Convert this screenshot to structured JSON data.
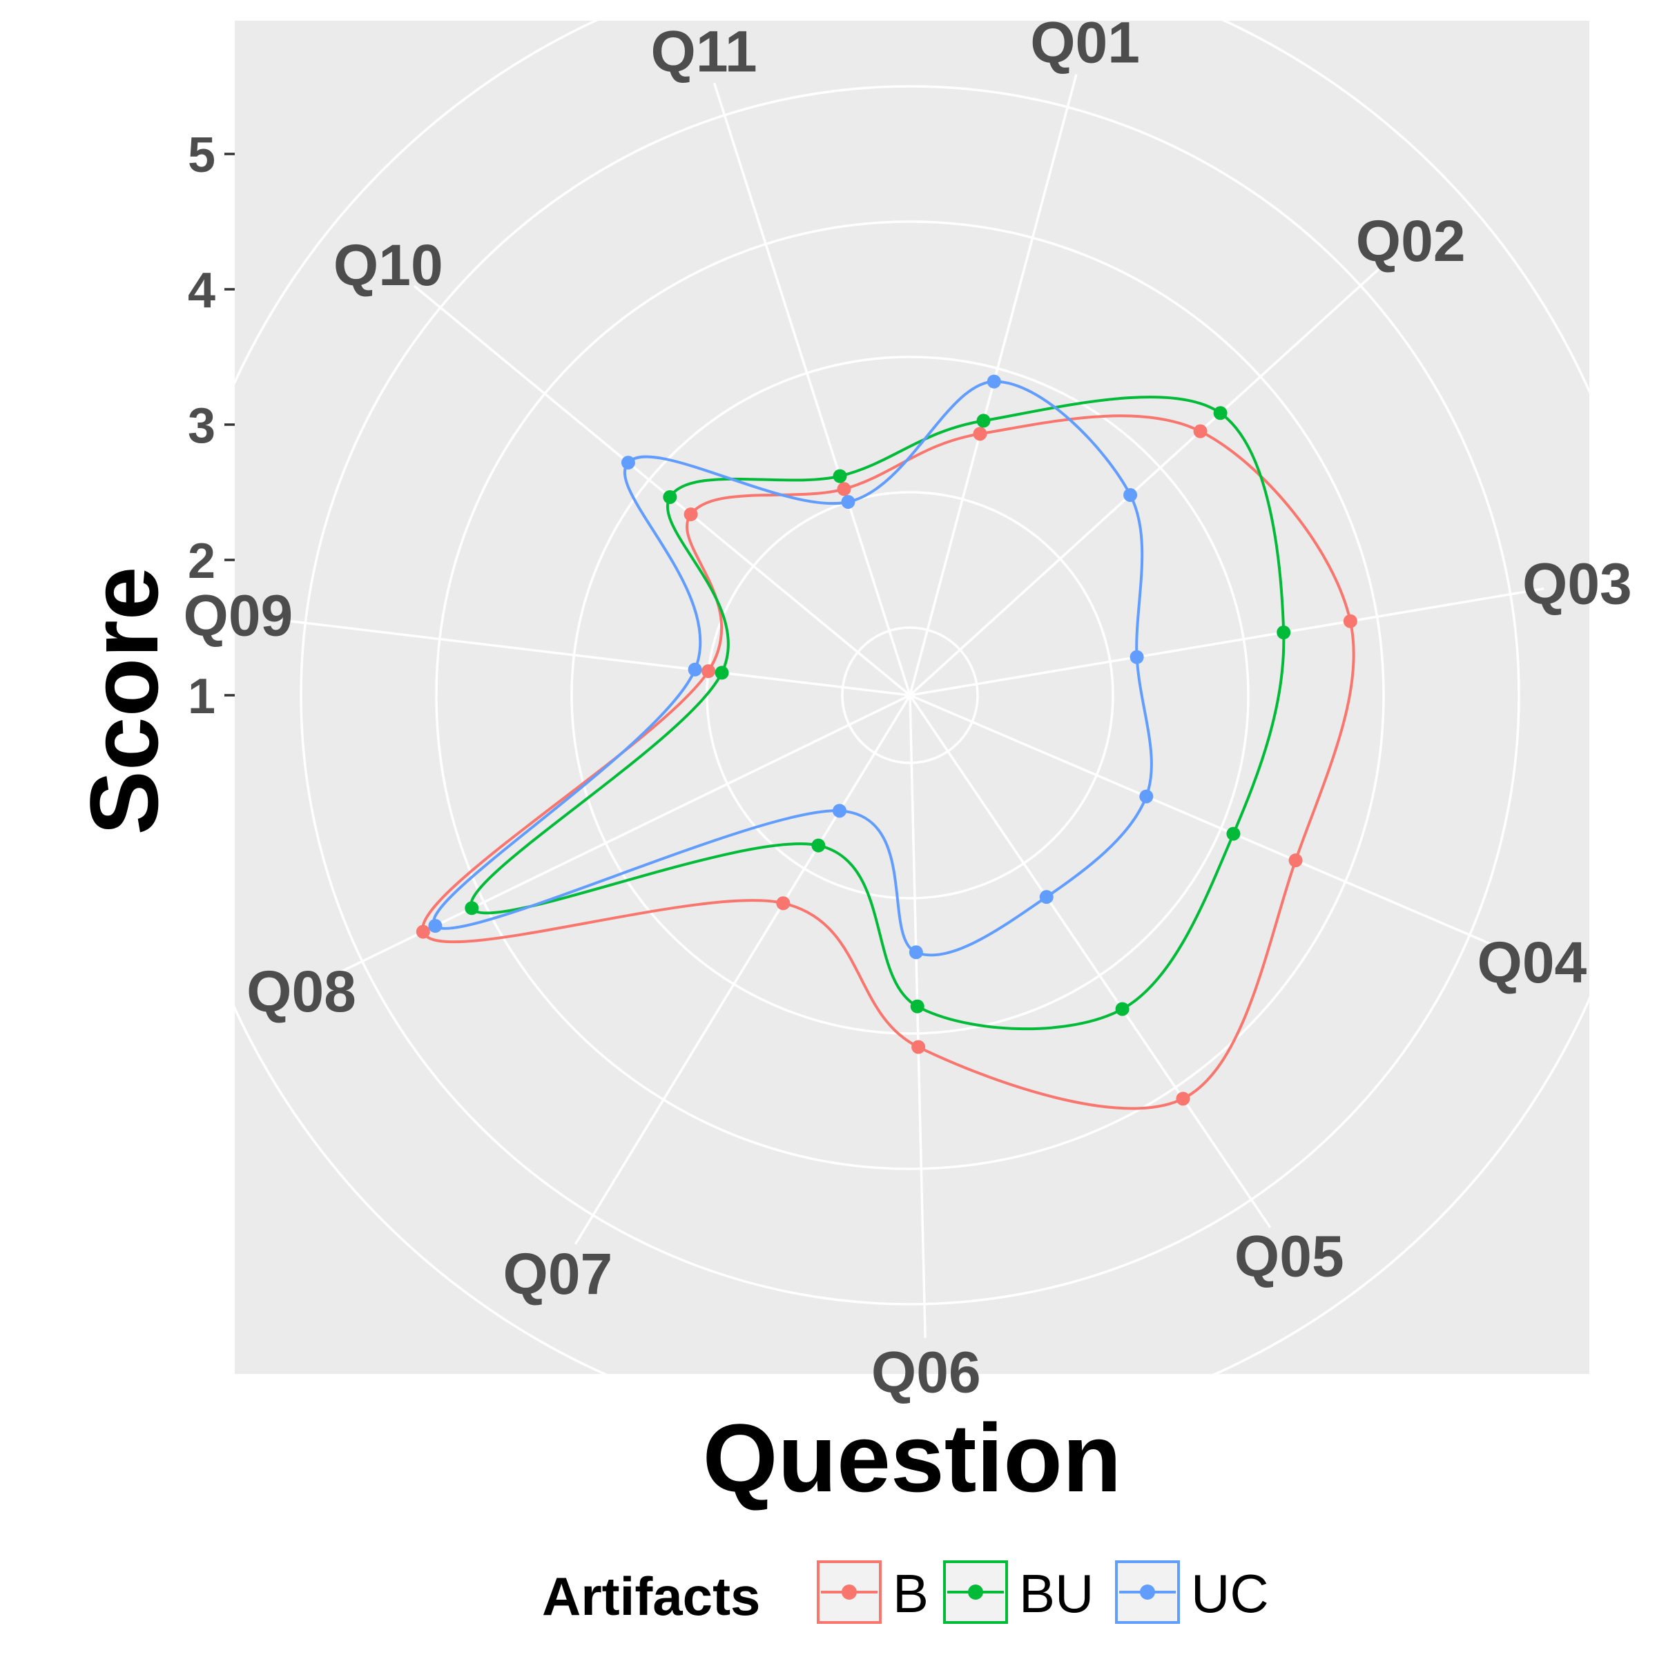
{
  "chart_data": {
    "type": "radar",
    "xlabel": "Question",
    "ylabel": "Score",
    "categories": [
      "Q01",
      "Q02",
      "Q03",
      "Q04",
      "Q05",
      "Q06",
      "Q07",
      "Q08",
      "Q09",
      "Q10",
      "Q11"
    ],
    "y_ticks": [
      1,
      2,
      3,
      4,
      5
    ],
    "ylim": [
      0,
      5.5
    ],
    "grid": true,
    "legend": {
      "title": "Artifacts",
      "position": "bottom"
    },
    "series": [
      {
        "name": "B",
        "color": "#F8766D",
        "values": [
          2.0,
          2.9,
          3.3,
          3.1,
          3.6,
          2.6,
          1.8,
          4.0,
          1.5,
          2.1,
          1.6
        ]
      },
      {
        "name": "BU",
        "color": "#00BA38",
        "values": [
          2.1,
          3.1,
          2.8,
          2.6,
          2.8,
          2.3,
          1.3,
          3.6,
          1.4,
          2.3,
          1.7
        ]
      },
      {
        "name": "UC",
        "color": "#619CFF",
        "values": [
          2.4,
          2.2,
          1.7,
          1.9,
          1.8,
          1.9,
          1.0,
          3.9,
          1.6,
          2.7,
          1.5
        ]
      }
    ]
  }
}
